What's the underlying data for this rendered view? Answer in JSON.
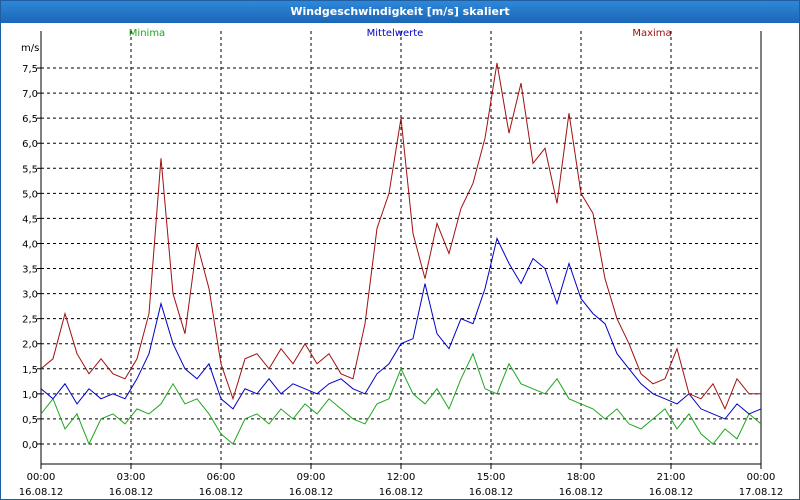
{
  "window": {
    "title": "Windgeschwindigkeit [m/s] skaliert"
  },
  "chart_data": {
    "type": "line",
    "title": "Windgeschwindigkeit [m/s] skaliert",
    "ylabel": "m/s",
    "xlabel": "",
    "ylim": [
      -0.4,
      8.0
    ],
    "xlim": [
      0,
      24
    ],
    "grid": true,
    "legend_placement": "top",
    "y_ticks": [
      "0,0",
      "0,5",
      "1,0",
      "1,5",
      "2,0",
      "2,5",
      "3,0",
      "3,5",
      "4,0",
      "4,5",
      "5,0",
      "5,5",
      "6,0",
      "6,5",
      "7,0",
      "7,5"
    ],
    "x_ticks": [
      {
        "time": "00:00",
        "date": "16.08.12"
      },
      {
        "time": "03:00",
        "date": "16.08.12"
      },
      {
        "time": "06:00",
        "date": "16.08.12"
      },
      {
        "time": "09:00",
        "date": "16.08.12"
      },
      {
        "time": "12:00",
        "date": "16.08.12"
      },
      {
        "time": "15:00",
        "date": "16.08.12"
      },
      {
        "time": "18:00",
        "date": "16.08.12"
      },
      {
        "time": "21:00",
        "date": "16.08.12"
      },
      {
        "time": "00:00",
        "date": "17.08.12"
      }
    ],
    "x_unit": "hours since 16.08.12 00:00",
    "series": [
      {
        "name": "Minima",
        "color": "#1fa51f",
        "points": [
          [
            0,
            0.6
          ],
          [
            0.4,
            0.9
          ],
          [
            0.8,
            0.3
          ],
          [
            1.2,
            0.6
          ],
          [
            1.6,
            0
          ],
          [
            2,
            0.5
          ],
          [
            2.4,
            0.6
          ],
          [
            2.8,
            0.4
          ],
          [
            3.2,
            0.7
          ],
          [
            3.6,
            0.6
          ],
          [
            4,
            0.8
          ],
          [
            4.4,
            1.2
          ],
          [
            4.8,
            0.8
          ],
          [
            5.2,
            0.9
          ],
          [
            5.6,
            0.6
          ],
          [
            6,
            0.2
          ],
          [
            6.4,
            0
          ],
          [
            6.8,
            0.5
          ],
          [
            7.2,
            0.6
          ],
          [
            7.6,
            0.4
          ],
          [
            8,
            0.7
          ],
          [
            8.4,
            0.5
          ],
          [
            8.8,
            0.8
          ],
          [
            9.2,
            0.6
          ],
          [
            9.6,
            0.9
          ],
          [
            10,
            0.7
          ],
          [
            10.4,
            0.5
          ],
          [
            10.8,
            0.4
          ],
          [
            11.2,
            0.8
          ],
          [
            11.6,
            0.9
          ],
          [
            12,
            1.5
          ],
          [
            12.4,
            1.0
          ],
          [
            12.8,
            0.8
          ],
          [
            13.2,
            1.1
          ],
          [
            13.6,
            0.7
          ],
          [
            14,
            1.3
          ],
          [
            14.4,
            1.8
          ],
          [
            14.8,
            1.1
          ],
          [
            15.2,
            1.0
          ],
          [
            15.6,
            1.6
          ],
          [
            16,
            1.2
          ],
          [
            16.4,
            1.1
          ],
          [
            16.8,
            1.0
          ],
          [
            17.2,
            1.3
          ],
          [
            17.6,
            0.9
          ],
          [
            18,
            0.8
          ],
          [
            18.4,
            0.7
          ],
          [
            18.8,
            0.5
          ],
          [
            19.2,
            0.7
          ],
          [
            19.6,
            0.4
          ],
          [
            20,
            0.3
          ],
          [
            20.4,
            0.5
          ],
          [
            20.8,
            0.7
          ],
          [
            21.2,
            0.3
          ],
          [
            21.6,
            0.6
          ],
          [
            22,
            0.2
          ],
          [
            22.4,
            0
          ],
          [
            22.8,
            0.3
          ],
          [
            23.2,
            0.1
          ],
          [
            23.6,
            0.6
          ],
          [
            24,
            0.4
          ]
        ]
      },
      {
        "name": "Mittelwerte",
        "color": "#0000c8",
        "points": [
          [
            0,
            1.1
          ],
          [
            0.4,
            0.9
          ],
          [
            0.8,
            1.2
          ],
          [
            1.2,
            0.8
          ],
          [
            1.6,
            1.1
          ],
          [
            2,
            0.9
          ],
          [
            2.4,
            1.0
          ],
          [
            2.8,
            0.9
          ],
          [
            3.2,
            1.3
          ],
          [
            3.6,
            1.8
          ],
          [
            4,
            2.8
          ],
          [
            4.4,
            2.0
          ],
          [
            4.8,
            1.5
          ],
          [
            5.2,
            1.3
          ],
          [
            5.6,
            1.6
          ],
          [
            6,
            0.9
          ],
          [
            6.4,
            0.7
          ],
          [
            6.8,
            1.1
          ],
          [
            7.2,
            1.0
          ],
          [
            7.6,
            1.3
          ],
          [
            8,
            1.0
          ],
          [
            8.4,
            1.2
          ],
          [
            8.8,
            1.1
          ],
          [
            9.2,
            1.0
          ],
          [
            9.6,
            1.2
          ],
          [
            10,
            1.3
          ],
          [
            10.4,
            1.1
          ],
          [
            10.8,
            1.0
          ],
          [
            11.2,
            1.4
          ],
          [
            11.6,
            1.6
          ],
          [
            12,
            2.0
          ],
          [
            12.4,
            2.1
          ],
          [
            12.8,
            3.2
          ],
          [
            13.2,
            2.2
          ],
          [
            13.6,
            1.9
          ],
          [
            14,
            2.5
          ],
          [
            14.4,
            2.4
          ],
          [
            14.8,
            3.1
          ],
          [
            15.2,
            4.1
          ],
          [
            15.6,
            3.6
          ],
          [
            16,
            3.2
          ],
          [
            16.4,
            3.7
          ],
          [
            16.8,
            3.5
          ],
          [
            17.2,
            2.8
          ],
          [
            17.6,
            3.6
          ],
          [
            18,
            2.9
          ],
          [
            18.4,
            2.6
          ],
          [
            18.8,
            2.4
          ],
          [
            19.2,
            1.8
          ],
          [
            19.6,
            1.5
          ],
          [
            20,
            1.2
          ],
          [
            20.4,
            1.0
          ],
          [
            20.8,
            0.9
          ],
          [
            21.2,
            0.8
          ],
          [
            21.6,
            1.0
          ],
          [
            22,
            0.7
          ],
          [
            22.4,
            0.6
          ],
          [
            22.8,
            0.5
          ],
          [
            23.2,
            0.8
          ],
          [
            23.6,
            0.6
          ],
          [
            24,
            0.7
          ]
        ]
      },
      {
        "name": "Maxima",
        "color": "#a01010",
        "points": [
          [
            0,
            1.5
          ],
          [
            0.4,
            1.7
          ],
          [
            0.8,
            2.6
          ],
          [
            1.2,
            1.8
          ],
          [
            1.6,
            1.4
          ],
          [
            2,
            1.7
          ],
          [
            2.4,
            1.4
          ],
          [
            2.8,
            1.3
          ],
          [
            3.2,
            1.7
          ],
          [
            3.6,
            2.6
          ],
          [
            4,
            5.7
          ],
          [
            4.4,
            3.0
          ],
          [
            4.8,
            2.2
          ],
          [
            5.2,
            4.0
          ],
          [
            5.6,
            3.1
          ],
          [
            6,
            1.6
          ],
          [
            6.4,
            0.9
          ],
          [
            6.8,
            1.7
          ],
          [
            7.2,
            1.8
          ],
          [
            7.6,
            1.5
          ],
          [
            8,
            1.9
          ],
          [
            8.4,
            1.6
          ],
          [
            8.8,
            2.0
          ],
          [
            9.2,
            1.6
          ],
          [
            9.6,
            1.8
          ],
          [
            10,
            1.4
          ],
          [
            10.4,
            1.3
          ],
          [
            10.8,
            2.4
          ],
          [
            11.2,
            4.3
          ],
          [
            11.6,
            5.0
          ],
          [
            12,
            6.5
          ],
          [
            12.4,
            4.2
          ],
          [
            12.8,
            3.3
          ],
          [
            13.2,
            4.4
          ],
          [
            13.6,
            3.8
          ],
          [
            14,
            4.7
          ],
          [
            14.4,
            5.2
          ],
          [
            14.8,
            6.1
          ],
          [
            15.2,
            7.6
          ],
          [
            15.6,
            6.2
          ],
          [
            16,
            7.2
          ],
          [
            16.4,
            5.6
          ],
          [
            16.8,
            5.9
          ],
          [
            17.2,
            4.8
          ],
          [
            17.6,
            6.6
          ],
          [
            18,
            5.0
          ],
          [
            18.4,
            4.6
          ],
          [
            18.8,
            3.3
          ],
          [
            19.2,
            2.5
          ],
          [
            19.6,
            2.0
          ],
          [
            20,
            1.4
          ],
          [
            20.4,
            1.2
          ],
          [
            20.8,
            1.3
          ],
          [
            21.2,
            1.9
          ],
          [
            21.6,
            1.0
          ],
          [
            22,
            0.9
          ],
          [
            22.4,
            1.2
          ],
          [
            22.8,
            0.7
          ],
          [
            23.2,
            1.3
          ],
          [
            23.6,
            1.0
          ],
          [
            24,
            1.0
          ]
        ]
      }
    ]
  }
}
